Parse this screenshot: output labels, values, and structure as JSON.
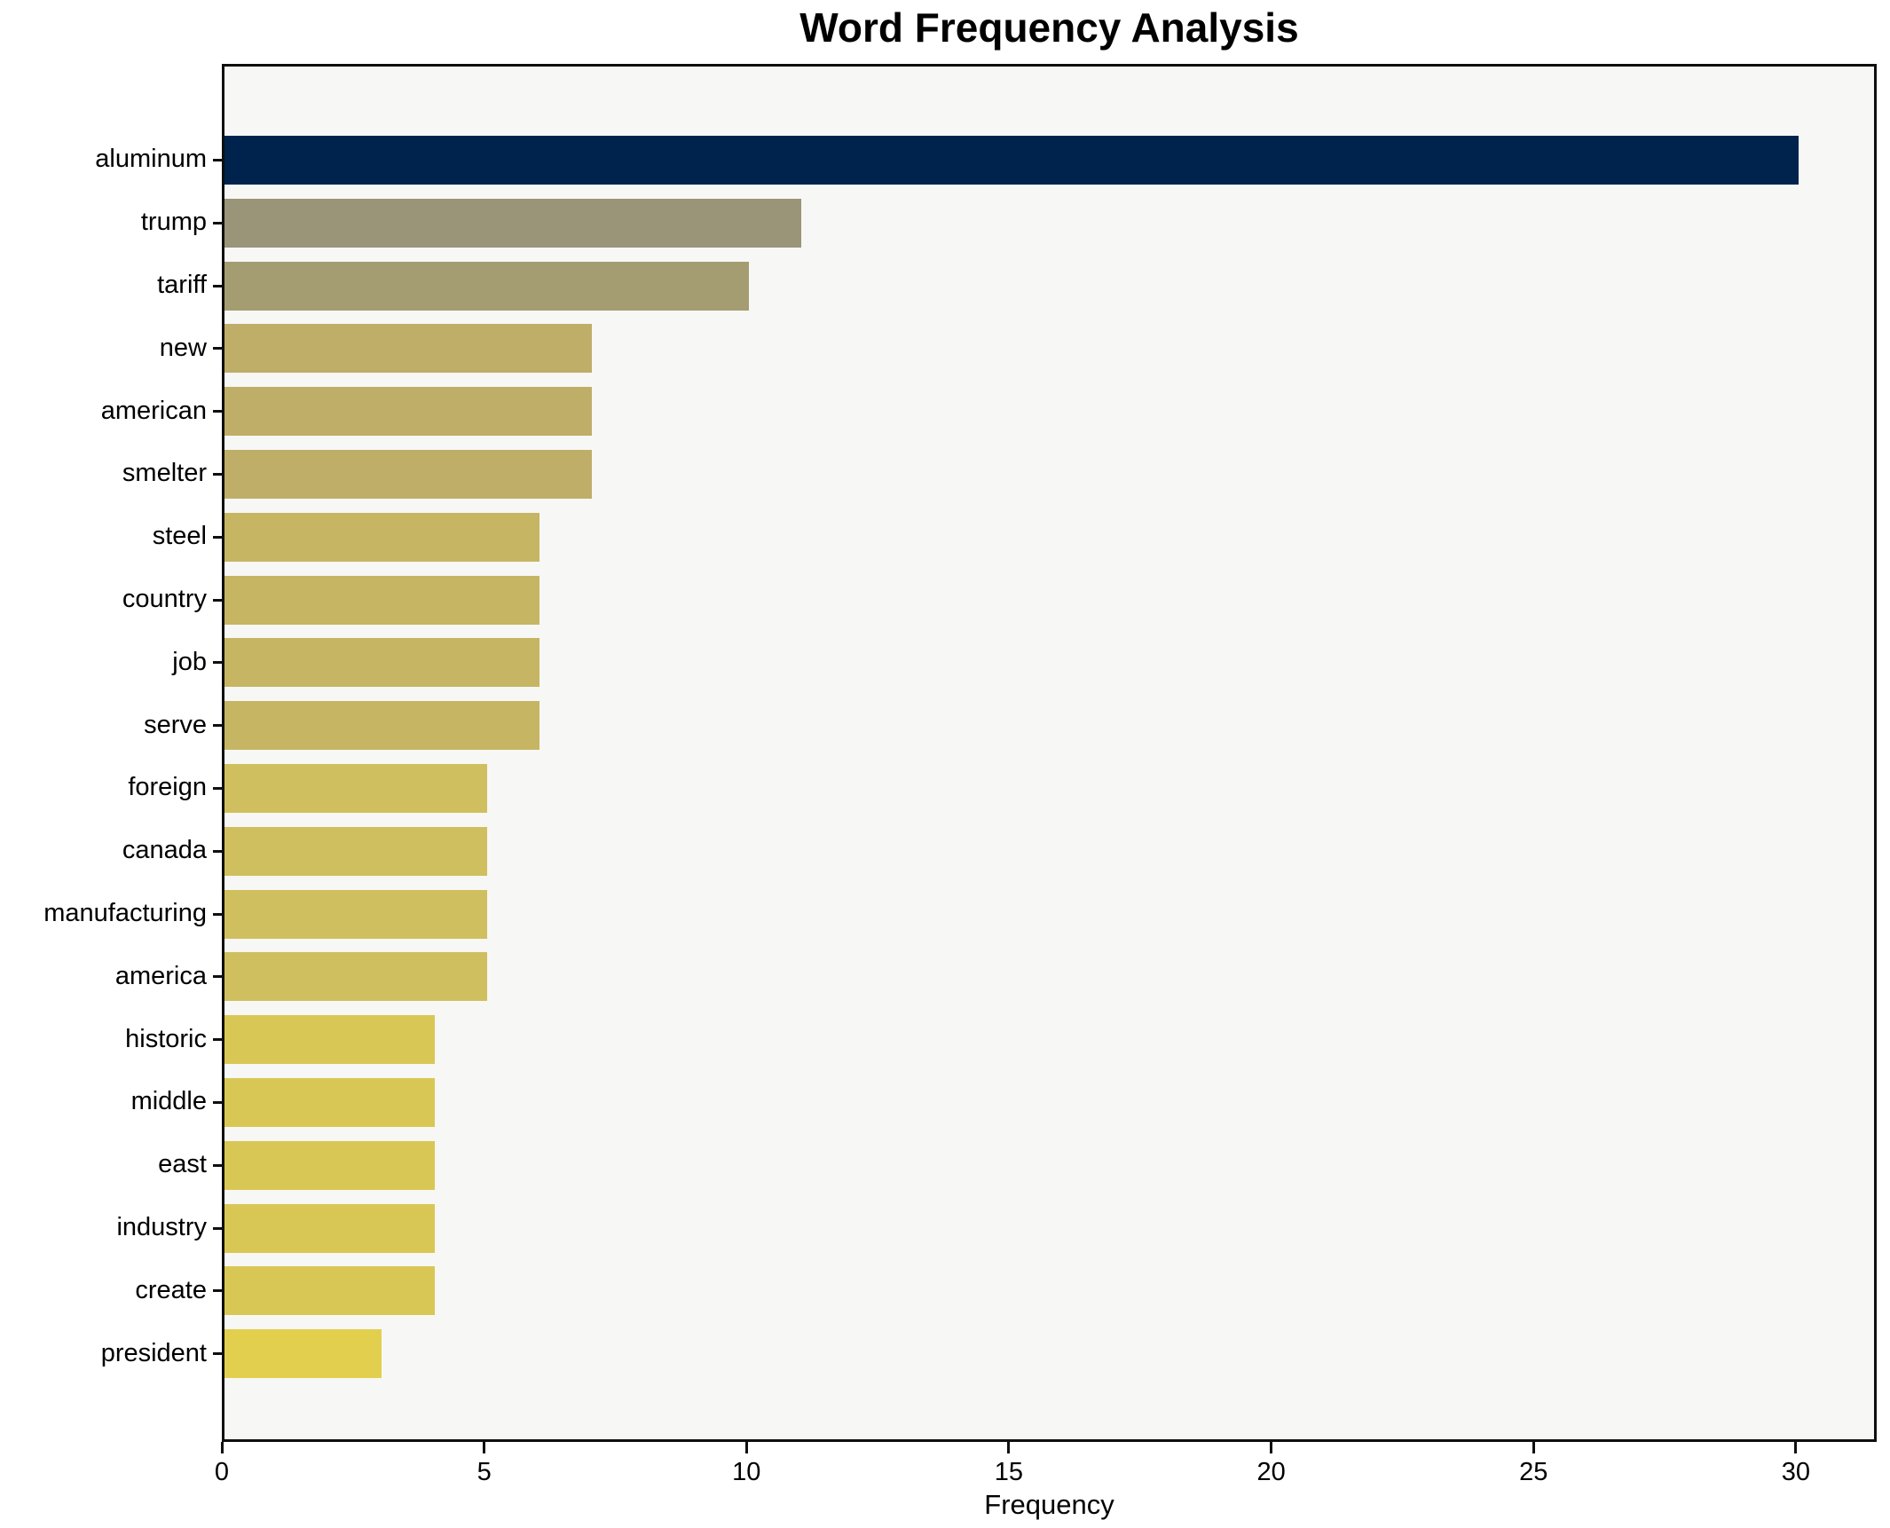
{
  "chart_data": {
    "type": "bar",
    "orientation": "horizontal",
    "title": "Word Frequency Analysis",
    "xlabel": "Frequency",
    "ylabel": "",
    "categories": [
      "aluminum",
      "trump",
      "tariff",
      "new",
      "american",
      "smelter",
      "steel",
      "country",
      "job",
      "serve",
      "foreign",
      "canada",
      "manufacturing",
      "america",
      "historic",
      "middle",
      "east",
      "industry",
      "create",
      "president"
    ],
    "values": [
      30,
      11,
      10,
      7,
      7,
      7,
      6,
      6,
      6,
      6,
      5,
      5,
      5,
      5,
      4,
      4,
      4,
      4,
      4,
      3
    ],
    "xticks": [
      0,
      5,
      10,
      15,
      20,
      25,
      30
    ],
    "xlim": [
      0,
      31.5
    ],
    "grid": false,
    "legend": null,
    "bar_colors": [
      "#00234e",
      "#9a9478",
      "#a49d72",
      "#bfae68",
      "#bfae68",
      "#bfae68",
      "#c6b563",
      "#c6b563",
      "#c6b563",
      "#c6b563",
      "#d0bf5e",
      "#d0bf5e",
      "#d0bf5e",
      "#d0bf5e",
      "#d9c755",
      "#d9c755",
      "#d9c755",
      "#d9c755",
      "#d9c755",
      "#e3cf4e"
    ],
    "plot_background": "#f7f7f5",
    "frame_color": "#0f0f0f",
    "figure_background": "#ffffff"
  }
}
